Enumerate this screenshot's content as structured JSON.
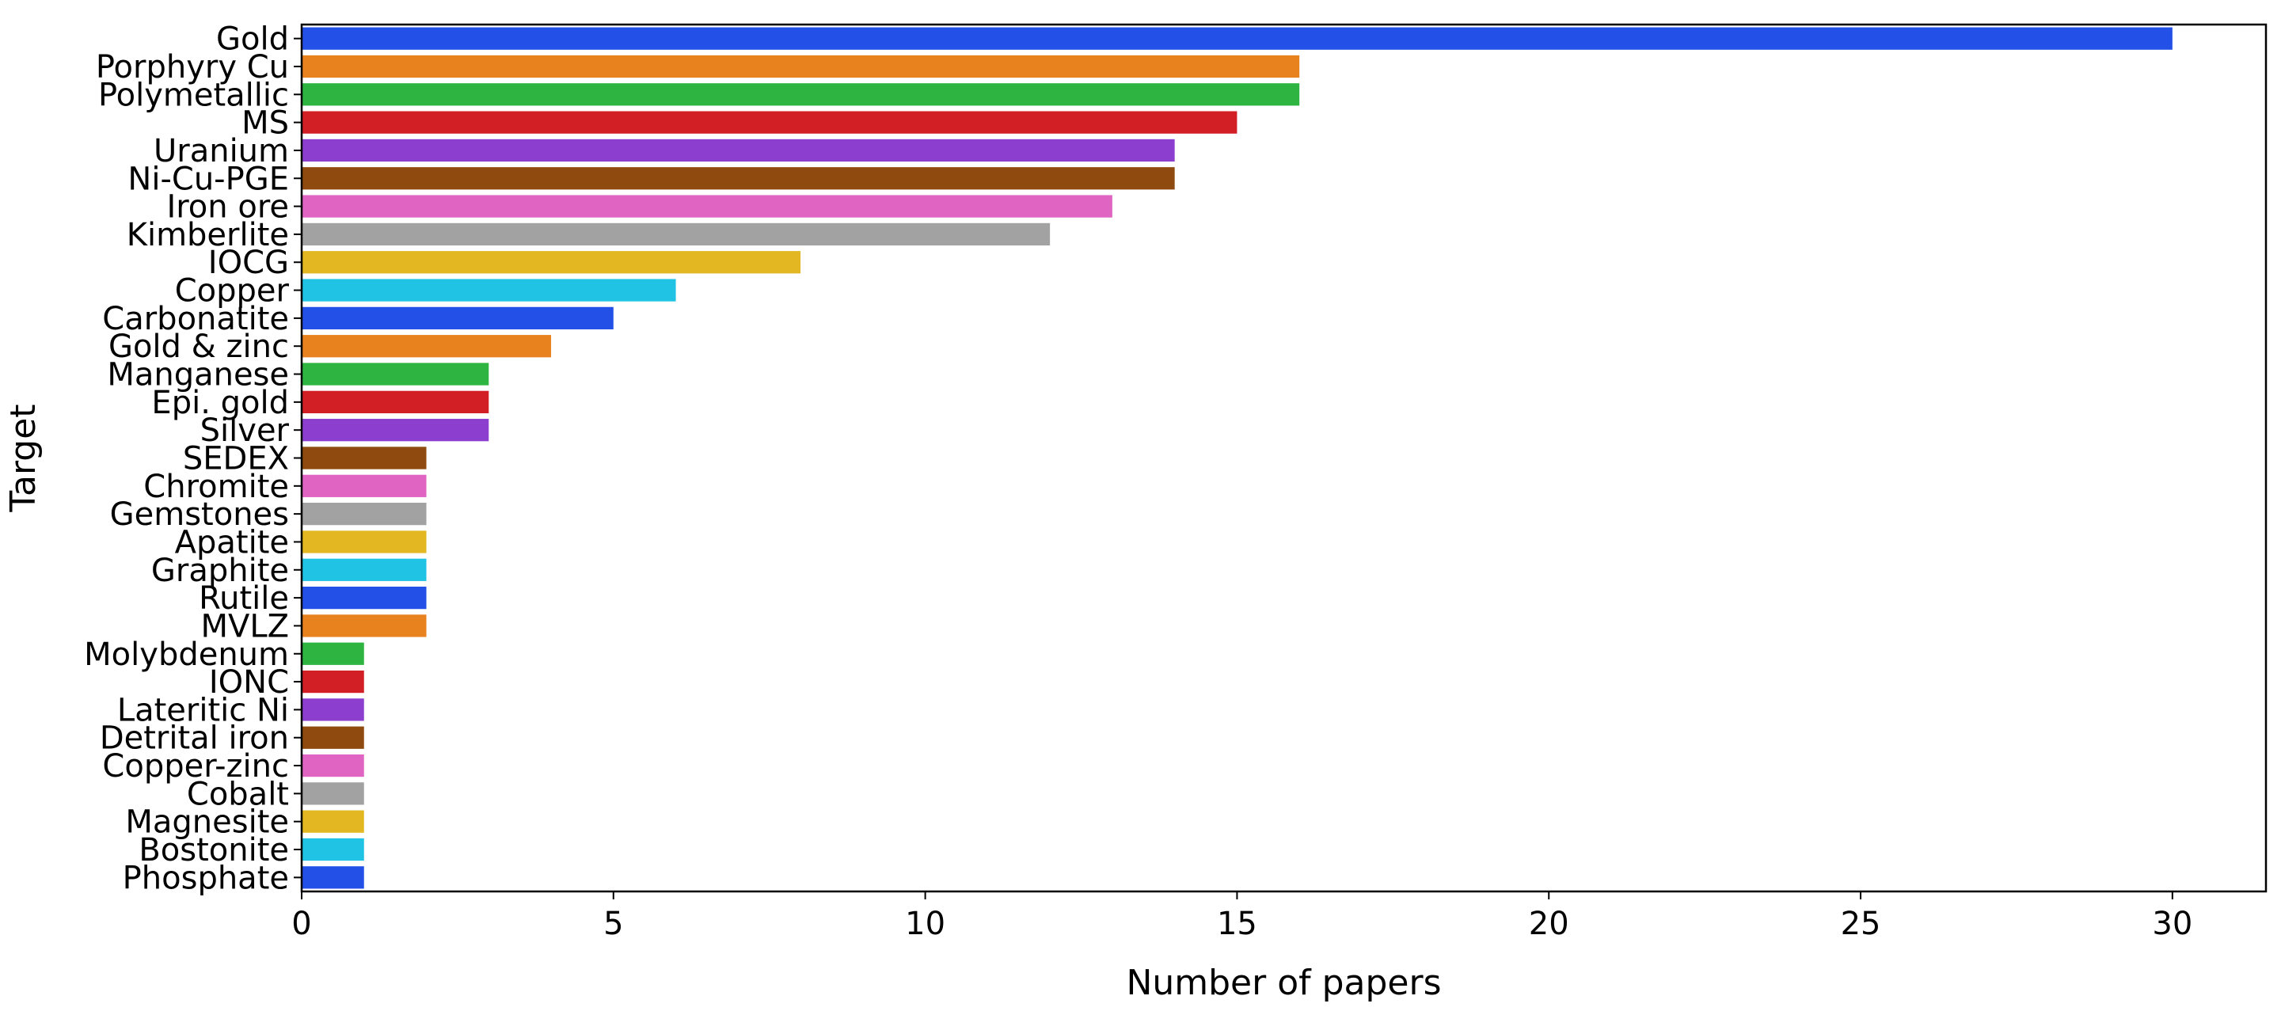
{
  "chart_data": {
    "type": "bar",
    "orientation": "horizontal",
    "title": "",
    "xlabel": "Number of papers",
    "ylabel": "Target",
    "xlim": [
      0,
      31.5
    ],
    "xticks": [
      0,
      5,
      10,
      15,
      20,
      25,
      30
    ],
    "grid": false,
    "legend": "none",
    "categories": [
      "Gold",
      "Porphyry Cu",
      "Polymetallic",
      "MS",
      "Uranium",
      "Ni-Cu-PGE",
      "Iron ore",
      "Kimberlite",
      "IOCG",
      "Copper",
      "Carbonatite",
      "Gold & zinc",
      "Manganese",
      "Epi. gold",
      "Silver",
      "SEDEX",
      "Chromite",
      "Gemstones",
      "Apatite",
      "Graphite",
      "Rutile",
      "MVLZ",
      "Molybdenum",
      "IONC",
      "Lateritic Ni",
      "Detrital iron",
      "Copper-zinc",
      "Cobalt",
      "Magnesite",
      "Bostonite",
      "Phosphate"
    ],
    "values": [
      30,
      16,
      16,
      15,
      14,
      14,
      13,
      12,
      8,
      6,
      5,
      4,
      3,
      3,
      3,
      2,
      2,
      2,
      2,
      2,
      2,
      2,
      1,
      1,
      1,
      1,
      1,
      1,
      1,
      1,
      1
    ],
    "palette": [
      "#2350e6",
      "#e8821f",
      "#2eb440",
      "#d21f26",
      "#8c3fcf",
      "#8f4a10",
      "#e065c3",
      "#a2a2a2",
      "#e3b722",
      "#20c3e3"
    ]
  }
}
